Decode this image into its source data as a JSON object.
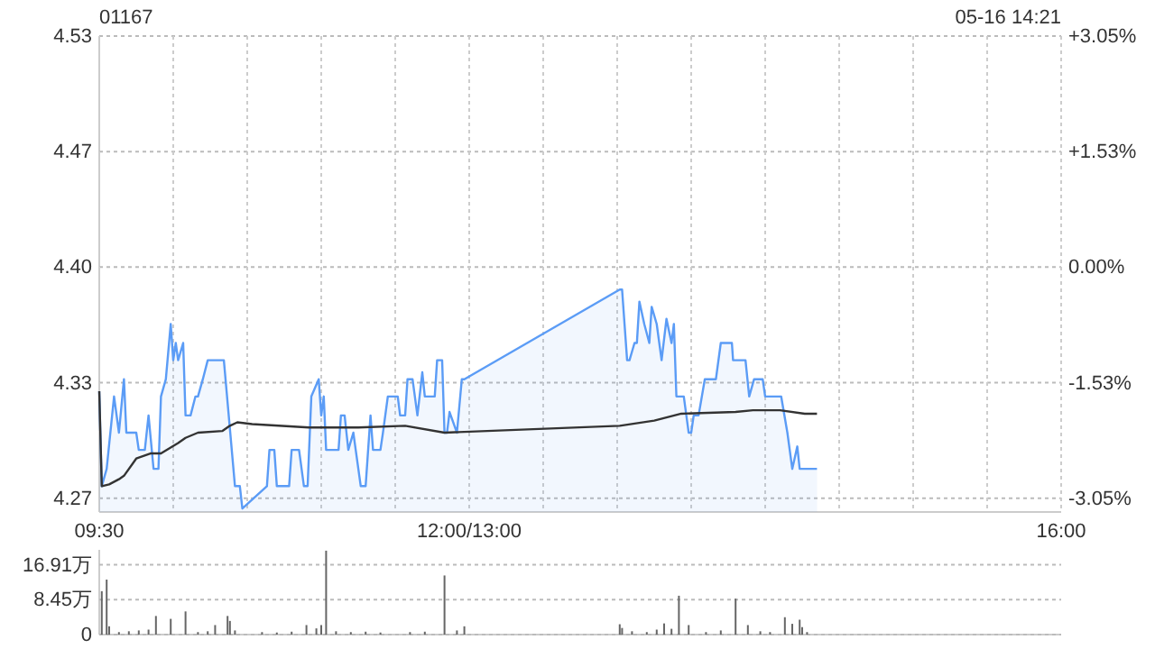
{
  "chart_data": [
    {
      "type": "line",
      "title": "01167",
      "annotations": [
        "05-16 14:21"
      ],
      "grid": true,
      "xlim": [
        9.5,
        16
      ],
      "xticks": [
        {
          "value": 9.5,
          "label": "09:30"
        },
        {
          "value": 10,
          "label": null
        },
        {
          "value": 10.5,
          "label": null
        },
        {
          "value": 11,
          "label": null
        },
        {
          "value": 11.5,
          "label": null
        },
        {
          "value": 12,
          "label": "12:00/13:00"
        },
        {
          "value": 12.5,
          "label": null
        },
        {
          "value": 13,
          "label": null
        },
        {
          "value": 13.5,
          "label": null
        },
        {
          "value": 14,
          "label": null
        },
        {
          "value": 14.5,
          "label": null
        },
        {
          "value": 15,
          "label": null
        },
        {
          "value": 15.5,
          "label": null
        },
        {
          "value": 16,
          "label": "16:00"
        }
      ],
      "ylim": [
        4.258,
        4.534
      ],
      "yticks": [
        {
          "value": 4.534,
          "label": "4.53"
        },
        {
          "value": 4.467,
          "label": "4.47"
        },
        {
          "value": 4.4,
          "label": "4.40"
        },
        {
          "value": 4.333,
          "label": "4.33"
        },
        {
          "value": 4.266,
          "label": "4.27"
        }
      ],
      "y2lim": [
        -3.23,
        3.05
      ],
      "y2ticks": [
        {
          "value": 3.05,
          "label": "+3.05%"
        },
        {
          "value": 1.53,
          "label": "+1.53%"
        },
        {
          "value": 0,
          "label": "0.00%"
        },
        {
          "value": -1.53,
          "label": "-1.53%"
        },
        {
          "value": -3.05,
          "label": "-3.05%"
        }
      ],
      "series": [
        {
          "type": "area",
          "color": "#5b9cf6",
          "x": [
            9.5,
            9.517,
            9.55,
            9.6,
            9.633,
            9.667,
            9.683,
            9.75,
            9.767,
            9.808,
            9.833,
            9.867,
            9.9,
            9.917,
            9.95,
            9.983,
            10,
            10.017,
            10.033,
            10.067,
            10.083,
            10.117,
            10.15,
            10.167,
            10.2,
            10.233,
            10.342,
            10.417,
            10.45,
            10.467,
            10.633,
            10.65,
            10.683,
            10.7,
            10.783,
            10.8,
            10.85,
            10.883,
            10.908,
            10.933,
            10.983,
            11,
            11.017,
            11.033,
            11.117,
            11.133,
            11.158,
            11.183,
            11.217,
            11.233,
            11.267,
            11.3,
            11.333,
            11.35,
            11.4,
            11.417,
            11.45,
            11.517,
            11.533,
            11.567,
            11.583,
            11.617,
            11.65,
            11.683,
            11.7,
            11.767,
            11.783,
            11.817,
            11.833,
            11.85,
            11.867,
            11.917,
            11.95,
            11.967,
            13.017,
            13.033,
            13.067,
            13.083,
            13.117,
            13.133,
            13.15,
            13.183,
            13.217,
            13.233,
            13.267,
            13.3,
            13.333,
            13.367,
            13.383,
            13.4,
            13.45,
            13.483,
            13.5,
            13.517,
            13.55,
            13.592,
            13.667,
            13.7,
            13.775,
            13.783,
            13.867,
            13.892,
            13.925,
            13.983,
            14,
            14.108,
            14.15,
            14.183,
            14.217,
            14.233,
            14.35
          ],
          "values": [
            4.328,
            4.273,
            4.283,
            4.325,
            4.304,
            4.335,
            4.304,
            4.304,
            4.294,
            4.294,
            4.314,
            4.283,
            4.283,
            4.325,
            4.335,
            4.367,
            4.346,
            4.356,
            4.346,
            4.356,
            4.314,
            4.314,
            4.325,
            4.325,
            4.335,
            4.346,
            4.346,
            4.273,
            4.273,
            4.26,
            4.273,
            4.294,
            4.294,
            4.273,
            4.273,
            4.294,
            4.294,
            4.273,
            4.273,
            4.325,
            4.335,
            4.314,
            4.325,
            4.294,
            4.294,
            4.314,
            4.314,
            4.294,
            4.304,
            4.294,
            4.273,
            4.273,
            4.314,
            4.294,
            4.294,
            4.304,
            4.325,
            4.325,
            4.314,
            4.314,
            4.335,
            4.335,
            4.314,
            4.339,
            4.325,
            4.325,
            4.346,
            4.346,
            4.304,
            4.304,
            4.316,
            4.304,
            4.335,
            4.335,
            4.387,
            4.387,
            4.346,
            4.346,
            4.356,
            4.356,
            4.38,
            4.367,
            4.356,
            4.377,
            4.367,
            4.346,
            4.37,
            4.356,
            4.367,
            4.325,
            4.325,
            4.304,
            4.304,
            4.314,
            4.314,
            4.335,
            4.335,
            4.356,
            4.356,
            4.346,
            4.346,
            4.325,
            4.335,
            4.335,
            4.325,
            4.325,
            4.304,
            4.283,
            4.296,
            4.283,
            4.283
          ]
        },
        {
          "color": "#333333",
          "x": [
            9.5,
            9.517,
            9.567,
            9.633,
            9.667,
            9.75,
            9.85,
            9.917,
            10.033,
            10.083,
            10.167,
            10.333,
            10.383,
            10.433,
            10.533,
            10.917,
            11.25,
            11.567,
            11.833,
            13.017,
            13.25,
            13.433,
            13.8,
            13.917,
            14.1,
            14.267,
            14.35
          ],
          "values": [
            4.328,
            4.273,
            4.274,
            4.277,
            4.279,
            4.289,
            4.292,
            4.292,
            4.298,
            4.301,
            4.304,
            4.305,
            4.308,
            4.31,
            4.309,
            4.307,
            4.307,
            4.308,
            4.304,
            4.308,
            4.311,
            4.315,
            4.316,
            4.317,
            4.317,
            4.315,
            4.315
          ]
        }
      ]
    },
    {
      "type": "bar",
      "tick_labels": "y",
      "grid": "y",
      "color": "#666666",
      "xlim": [
        9.5,
        16
      ],
      "ylim": [
        0,
        20.5
      ],
      "yticks": [
        0,
        {
          "value": 8.45,
          "label": "8.45万"
        },
        {
          "value": 16.91,
          "label": "16.91万"
        }
      ],
      "x": [
        9.517,
        9.55,
        9.567,
        9.633,
        9.7,
        9.767,
        9.833,
        9.883,
        9.983,
        10.083,
        10.167,
        10.233,
        10.283,
        10.367,
        10.383,
        10.417,
        10.6,
        10.7,
        10.8,
        10.9,
        10.967,
        11,
        11.033,
        11.1,
        11.2,
        11.3,
        11.4,
        11.6,
        11.7,
        11.833,
        11.917,
        11.967,
        13.017,
        13.033,
        13.1,
        13.2,
        13.267,
        13.317,
        13.367,
        13.417,
        13.483,
        13.6,
        13.7,
        13.8,
        13.883,
        13.967,
        14.033,
        14.133,
        14.183,
        14.233,
        14.25,
        14.283
      ],
      "values": [
        10.5,
        13.3,
        2,
        0.6,
        0.8,
        1,
        1.2,
        4.5,
        3.8,
        5.6,
        0.6,
        0.8,
        2.3,
        4.5,
        3.3,
        1,
        0.6,
        0.5,
        0.7,
        2.3,
        1.5,
        2.3,
        20.3,
        0.8,
        0.6,
        0.7,
        0.5,
        0.6,
        0.7,
        14.3,
        1,
        2,
        2.5,
        1.6,
        0.8,
        0.6,
        1.2,
        2.7,
        1.4,
        9.4,
        2.3,
        0.6,
        1,
        8.7,
        2.3,
        0.8,
        0.6,
        4.2,
        2.6,
        3.6,
        1.8,
        0.6
      ]
    }
  ]
}
